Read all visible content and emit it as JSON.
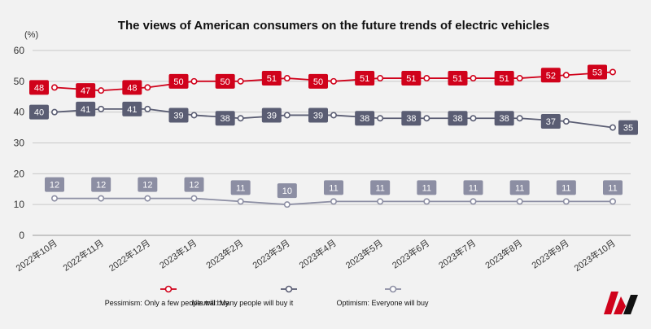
{
  "chart_data": {
    "type": "line",
    "title": "The views of American consumers on the future trends of electric vehicles",
    "unit_label": "(%)",
    "categories": [
      "2022年10月",
      "2022年11月",
      "2022年12月",
      "2023年1月",
      "2023年2月",
      "2023年3月",
      "2023年4月",
      "2023年5月",
      "2023年6月",
      "2023年7月",
      "2023年8月",
      "2023年9月",
      "2023年10月"
    ],
    "ylim": [
      0,
      60
    ],
    "yticks": [
      0,
      10,
      20,
      30,
      40,
      50,
      60
    ],
    "grid": true,
    "legend_position": "bottom",
    "series": [
      {
        "name": "Pessimism: Only a few people will buy",
        "color": "#d0021b",
        "values": [
          48,
          47,
          48,
          50,
          50,
          51,
          50,
          51,
          51,
          51,
          51,
          52,
          53
        ]
      },
      {
        "name": "Neutral: Many people will buy it",
        "color": "#5a5d73",
        "values": [
          40,
          41,
          41,
          39,
          38,
          39,
          39,
          38,
          38,
          38,
          38,
          37,
          35
        ]
      },
      {
        "name": "Optimism: Everyone will buy",
        "color": "#8c8ea3",
        "values": [
          12,
          12,
          12,
          12,
          11,
          10,
          11,
          11,
          11,
          11,
          11,
          11,
          11
        ]
      }
    ]
  },
  "logo": {
    "icon": "m-brand-logo",
    "colors": [
      "#d0021b",
      "#111111"
    ]
  }
}
